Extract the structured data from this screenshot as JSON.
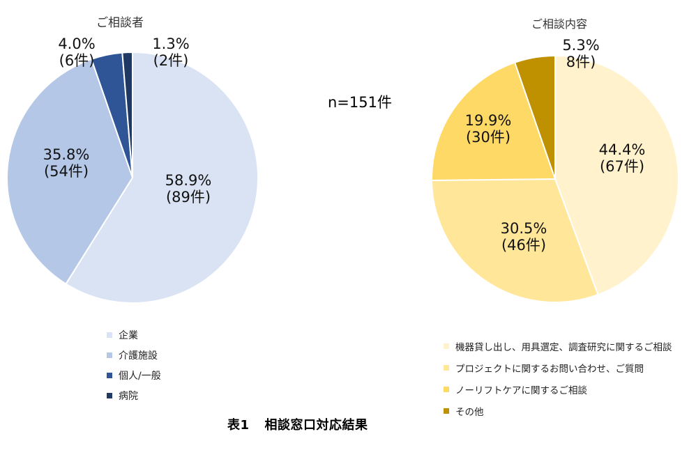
{
  "n_label": "n=151件",
  "caption": {
    "number": "表1",
    "title": "相談窓口対応結果"
  },
  "chart_data": [
    {
      "type": "pie",
      "title": "ご相談者",
      "slices": [
        {
          "name": "企業",
          "value": 58.9,
          "count": 89,
          "pct_label": "58.9%",
          "count_label": "(89件)",
          "color": "#DAE3F3"
        },
        {
          "name": "介護施設",
          "value": 35.8,
          "count": 54,
          "pct_label": "35.8%",
          "count_label": "(54件)",
          "color": "#B4C7E7"
        },
        {
          "name": "個人/一般",
          "value": 4.0,
          "count": 6,
          "pct_label": "4.0%",
          "count_label": "(6件)",
          "color": "#2F5597"
        },
        {
          "name": "病院",
          "value": 1.3,
          "count": 2,
          "pct_label": "1.3%",
          "count_label": "(2件)",
          "color": "#1F3864"
        }
      ],
      "legend_position": "bottom"
    },
    {
      "type": "pie",
      "title": "ご相談内容",
      "slices": [
        {
          "name": "機器貸し出し、用具選定、調査研究に関するご相談",
          "value": 44.4,
          "count": 67,
          "pct_label": "44.4%",
          "count_label": "(67件)",
          "color": "#FFF2CC"
        },
        {
          "name": "プロジェクトに関するお問い合わせ、ご質問",
          "value": 30.5,
          "count": 46,
          "pct_label": "30.5%",
          "count_label": "(46件)",
          "color": "#FFE699"
        },
        {
          "name": "ノーリフトケアに関するご相談",
          "value": 19.9,
          "count": 30,
          "pct_label": "19.9%",
          "count_label": "(30件)",
          "color": "#FFD966"
        },
        {
          "name": "その他",
          "value": 5.3,
          "count": 8,
          "pct_label": "5.3%",
          "count_label": "8件)",
          "color": "#BF9000"
        }
      ],
      "legend_position": "bottom"
    }
  ]
}
